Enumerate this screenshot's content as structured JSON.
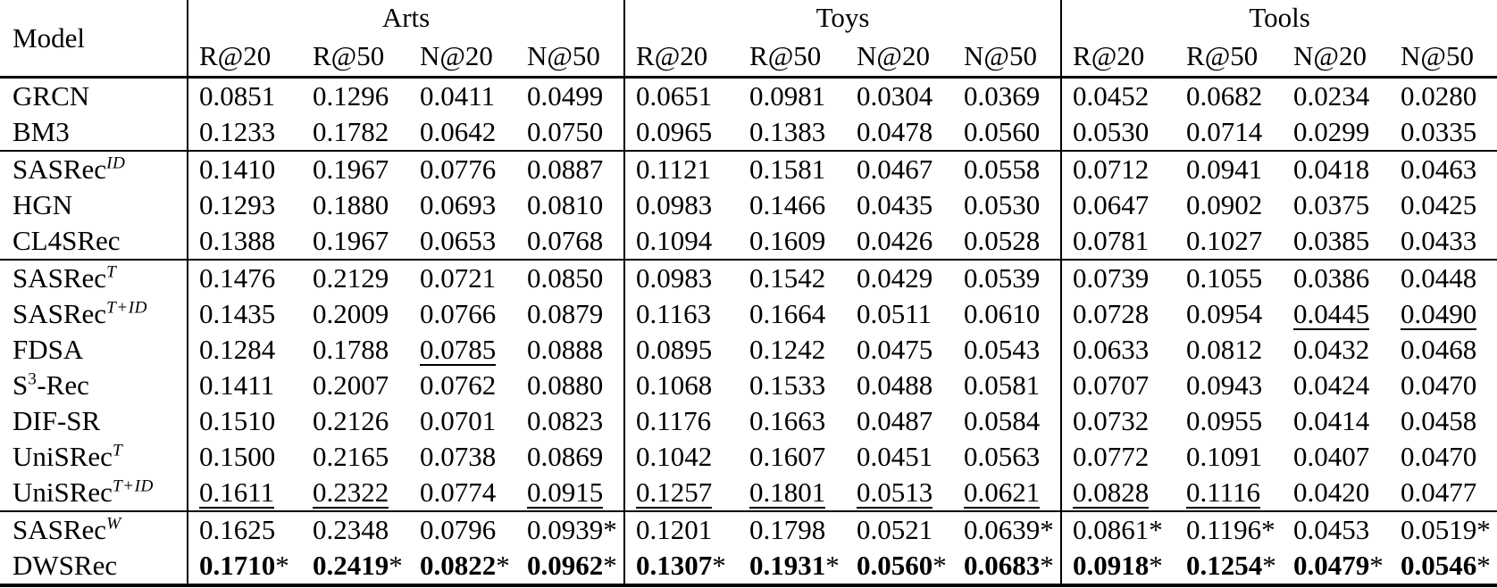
{
  "colors": {
    "text": "#000000",
    "background": "#ffffff"
  },
  "table": {
    "model_header": "Model",
    "groups": [
      {
        "label": "Arts",
        "metrics": [
          "R@20",
          "R@50",
          "N@20",
          "N@50"
        ]
      },
      {
        "label": "Toys",
        "metrics": [
          "R@20",
          "R@50",
          "N@20",
          "N@50"
        ]
      },
      {
        "label": "Tools",
        "metrics": [
          "R@20",
          "R@50",
          "N@20",
          "N@50"
        ]
      }
    ],
    "cell_flag_legend": {
      "": "plain",
      "u": "underlined",
      "s": "asterisk",
      "bs": "bold with asterisk"
    },
    "sections": [
      {
        "rows": [
          {
            "model": [
              {
                "t": "GRCN"
              }
            ],
            "cells": [
              [
                "0.0851",
                ""
              ],
              [
                "0.1296",
                ""
              ],
              [
                "0.0411",
                ""
              ],
              [
                "0.0499",
                ""
              ],
              [
                "0.0651",
                ""
              ],
              [
                "0.0981",
                ""
              ],
              [
                "0.0304",
                ""
              ],
              [
                "0.0369",
                ""
              ],
              [
                "0.0452",
                ""
              ],
              [
                "0.0682",
                ""
              ],
              [
                "0.0234",
                ""
              ],
              [
                "0.0280",
                ""
              ]
            ]
          },
          {
            "model": [
              {
                "t": "BM3"
              }
            ],
            "cells": [
              [
                "0.1233",
                ""
              ],
              [
                "0.1782",
                ""
              ],
              [
                "0.0642",
                ""
              ],
              [
                "0.0750",
                ""
              ],
              [
                "0.0965",
                ""
              ],
              [
                "0.1383",
                ""
              ],
              [
                "0.0478",
                ""
              ],
              [
                "0.0560",
                ""
              ],
              [
                "0.0530",
                ""
              ],
              [
                "0.0714",
                ""
              ],
              [
                "0.0299",
                ""
              ],
              [
                "0.0335",
                ""
              ]
            ]
          }
        ]
      },
      {
        "rows": [
          {
            "model": [
              {
                "t": "SASRec"
              },
              {
                "t": "ID",
                "sup": true,
                "i": true
              }
            ],
            "cells": [
              [
                "0.1410",
                ""
              ],
              [
                "0.1967",
                ""
              ],
              [
                "0.0776",
                ""
              ],
              [
                "0.0887",
                ""
              ],
              [
                "0.1121",
                ""
              ],
              [
                "0.1581",
                ""
              ],
              [
                "0.0467",
                ""
              ],
              [
                "0.0558",
                ""
              ],
              [
                "0.0712",
                ""
              ],
              [
                "0.0941",
                ""
              ],
              [
                "0.0418",
                ""
              ],
              [
                "0.0463",
                ""
              ]
            ]
          },
          {
            "model": [
              {
                "t": "HGN"
              }
            ],
            "cells": [
              [
                "0.1293",
                ""
              ],
              [
                "0.1880",
                ""
              ],
              [
                "0.0693",
                ""
              ],
              [
                "0.0810",
                ""
              ],
              [
                "0.0983",
                ""
              ],
              [
                "0.1466",
                ""
              ],
              [
                "0.0435",
                ""
              ],
              [
                "0.0530",
                ""
              ],
              [
                "0.0647",
                ""
              ],
              [
                "0.0902",
                ""
              ],
              [
                "0.0375",
                ""
              ],
              [
                "0.0425",
                ""
              ]
            ]
          },
          {
            "model": [
              {
                "t": "CL4SRec"
              }
            ],
            "cells": [
              [
                "0.1388",
                ""
              ],
              [
                "0.1967",
                ""
              ],
              [
                "0.0653",
                ""
              ],
              [
                "0.0768",
                ""
              ],
              [
                "0.1094",
                ""
              ],
              [
                "0.1609",
                ""
              ],
              [
                "0.0426",
                ""
              ],
              [
                "0.0528",
                ""
              ],
              [
                "0.0781",
                ""
              ],
              [
                "0.1027",
                ""
              ],
              [
                "0.0385",
                ""
              ],
              [
                "0.0433",
                ""
              ]
            ]
          }
        ]
      },
      {
        "rows": [
          {
            "model": [
              {
                "t": "SASRec"
              },
              {
                "t": "T",
                "sup": true,
                "i": true
              }
            ],
            "cells": [
              [
                "0.1476",
                ""
              ],
              [
                "0.2129",
                ""
              ],
              [
                "0.0721",
                ""
              ],
              [
                "0.0850",
                ""
              ],
              [
                "0.0983",
                ""
              ],
              [
                "0.1542",
                ""
              ],
              [
                "0.0429",
                ""
              ],
              [
                "0.0539",
                ""
              ],
              [
                "0.0739",
                ""
              ],
              [
                "0.1055",
                ""
              ],
              [
                "0.0386",
                ""
              ],
              [
                "0.0448",
                ""
              ]
            ]
          },
          {
            "model": [
              {
                "t": "SASRec"
              },
              {
                "t": "T+ID",
                "sup": true,
                "i": true
              }
            ],
            "cells": [
              [
                "0.1435",
                ""
              ],
              [
                "0.2009",
                ""
              ],
              [
                "0.0766",
                ""
              ],
              [
                "0.0879",
                ""
              ],
              [
                "0.1163",
                ""
              ],
              [
                "0.1664",
                ""
              ],
              [
                "0.0511",
                ""
              ],
              [
                "0.0610",
                ""
              ],
              [
                "0.0728",
                ""
              ],
              [
                "0.0954",
                ""
              ],
              [
                "0.0445",
                "u"
              ],
              [
                "0.0490",
                "u"
              ]
            ]
          },
          {
            "model": [
              {
                "t": "FDSA"
              }
            ],
            "cells": [
              [
                "0.1284",
                ""
              ],
              [
                "0.1788",
                ""
              ],
              [
                "0.0785",
                "u"
              ],
              [
                "0.0888",
                ""
              ],
              [
                "0.0895",
                ""
              ],
              [
                "0.1242",
                ""
              ],
              [
                "0.0475",
                ""
              ],
              [
                "0.0543",
                ""
              ],
              [
                "0.0633",
                ""
              ],
              [
                "0.0812",
                ""
              ],
              [
                "0.0432",
                ""
              ],
              [
                "0.0468",
                ""
              ]
            ]
          },
          {
            "model": [
              {
                "t": "S"
              },
              {
                "t": "3",
                "sup": true
              },
              {
                "t": "-Rec"
              }
            ],
            "cells": [
              [
                "0.1411",
                ""
              ],
              [
                "0.2007",
                ""
              ],
              [
                "0.0762",
                ""
              ],
              [
                "0.0880",
                ""
              ],
              [
                "0.1068",
                ""
              ],
              [
                "0.1533",
                ""
              ],
              [
                "0.0488",
                ""
              ],
              [
                "0.0581",
                ""
              ],
              [
                "0.0707",
                ""
              ],
              [
                "0.0943",
                ""
              ],
              [
                "0.0424",
                ""
              ],
              [
                "0.0470",
                ""
              ]
            ]
          },
          {
            "model": [
              {
                "t": "DIF-SR"
              }
            ],
            "cells": [
              [
                "0.1510",
                ""
              ],
              [
                "0.2126",
                ""
              ],
              [
                "0.0701",
                ""
              ],
              [
                "0.0823",
                ""
              ],
              [
                "0.1176",
                ""
              ],
              [
                "0.1663",
                ""
              ],
              [
                "0.0487",
                ""
              ],
              [
                "0.0584",
                ""
              ],
              [
                "0.0732",
                ""
              ],
              [
                "0.0955",
                ""
              ],
              [
                "0.0414",
                ""
              ],
              [
                "0.0458",
                ""
              ]
            ]
          },
          {
            "model": [
              {
                "t": "UniSRec"
              },
              {
                "t": "T",
                "sup": true,
                "i": true
              }
            ],
            "cells": [
              [
                "0.1500",
                ""
              ],
              [
                "0.2165",
                ""
              ],
              [
                "0.0738",
                ""
              ],
              [
                "0.0869",
                ""
              ],
              [
                "0.1042",
                ""
              ],
              [
                "0.1607",
                ""
              ],
              [
                "0.0451",
                ""
              ],
              [
                "0.0563",
                ""
              ],
              [
                "0.0772",
                ""
              ],
              [
                "0.1091",
                ""
              ],
              [
                "0.0407",
                ""
              ],
              [
                "0.0470",
                ""
              ]
            ]
          },
          {
            "model": [
              {
                "t": "UniSRec"
              },
              {
                "t": "T+ID",
                "sup": true,
                "i": true
              }
            ],
            "cells": [
              [
                "0.1611",
                "u"
              ],
              [
                "0.2322",
                "u"
              ],
              [
                "0.0774",
                ""
              ],
              [
                "0.0915",
                "u"
              ],
              [
                "0.1257",
                "u"
              ],
              [
                "0.1801",
                "u"
              ],
              [
                "0.0513",
                "u"
              ],
              [
                "0.0621",
                "u"
              ],
              [
                "0.0828",
                "u"
              ],
              [
                "0.1116",
                "u"
              ],
              [
                "0.0420",
                ""
              ],
              [
                "0.0477",
                ""
              ]
            ]
          }
        ]
      },
      {
        "rows": [
          {
            "model": [
              {
                "t": "SASRec"
              },
              {
                "t": "W",
                "sup": true,
                "i": true
              }
            ],
            "cells": [
              [
                "0.1625",
                ""
              ],
              [
                "0.2348",
                ""
              ],
              [
                "0.0796",
                ""
              ],
              [
                "0.0939",
                "s"
              ],
              [
                "0.1201",
                ""
              ],
              [
                "0.1798",
                ""
              ],
              [
                "0.0521",
                ""
              ],
              [
                "0.0639",
                "s"
              ],
              [
                "0.0861",
                "s"
              ],
              [
                "0.1196",
                "s"
              ],
              [
                "0.0453",
                ""
              ],
              [
                "0.0519",
                "s"
              ]
            ]
          },
          {
            "model": [
              {
                "t": "DWSRec"
              }
            ],
            "cells": [
              [
                "0.1710",
                "bs"
              ],
              [
                "0.2419",
                "bs"
              ],
              [
                "0.0822",
                "bs"
              ],
              [
                "0.0962",
                "bs"
              ],
              [
                "0.1307",
                "bs"
              ],
              [
                "0.1931",
                "bs"
              ],
              [
                "0.0560",
                "bs"
              ],
              [
                "0.0683",
                "bs"
              ],
              [
                "0.0918",
                "bs"
              ],
              [
                "0.1254",
                "bs"
              ],
              [
                "0.0479",
                "bs"
              ],
              [
                "0.0546",
                "bs"
              ]
            ]
          }
        ]
      }
    ]
  }
}
